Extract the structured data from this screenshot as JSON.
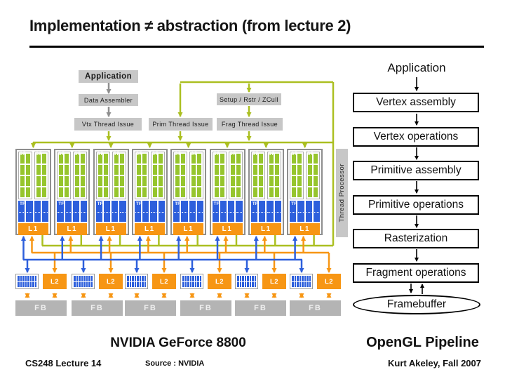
{
  "title": "Implementation ≠ abstraction (from lecture 2)",
  "gpu": {
    "application": "Application",
    "data_assembler": "Data Assembler",
    "vtx_thread_issue": "Vtx Thread Issue",
    "prim_thread_issue": "Prim Thread Issue",
    "setup": "Setup / Rstr / ZCull",
    "frag_thread_issue": "Frag Thread Issue",
    "thread_processor": "Thread Processor",
    "sp_label": "SP",
    "tf_label": "TF",
    "l1_label": "L1",
    "l2_label": "L2",
    "fb_label": "FB",
    "cluster_count": 8,
    "memory_group_count": 6,
    "caption": "NVIDIA GeForce 8800"
  },
  "pipeline": {
    "application": "Application",
    "stages": [
      {
        "label": "Vertex assembly"
      },
      {
        "label": "Vertex operations"
      },
      {
        "label": "Primitive assembly"
      },
      {
        "label": "Primitive operations"
      },
      {
        "label": "Rasterization"
      },
      {
        "label": "Fragment operations"
      }
    ],
    "framebuffer": "Framebuffer",
    "caption": "OpenGL Pipeline"
  },
  "footer": {
    "course": "CS248 Lecture 14",
    "source": "Source : NVIDIA",
    "credit": "Kurt Akeley, Fall 2007"
  },
  "colors": {
    "line_green": "#ABBF21",
    "cell_green": "#96C52D",
    "blue": "#2D5FDC",
    "orange": "#F79614",
    "box_gray": "#C7C7C7",
    "fb_gray": "#B4B4B4",
    "border_gray": "#8E8E8E",
    "arrow_gray": "#8F8F8F"
  }
}
